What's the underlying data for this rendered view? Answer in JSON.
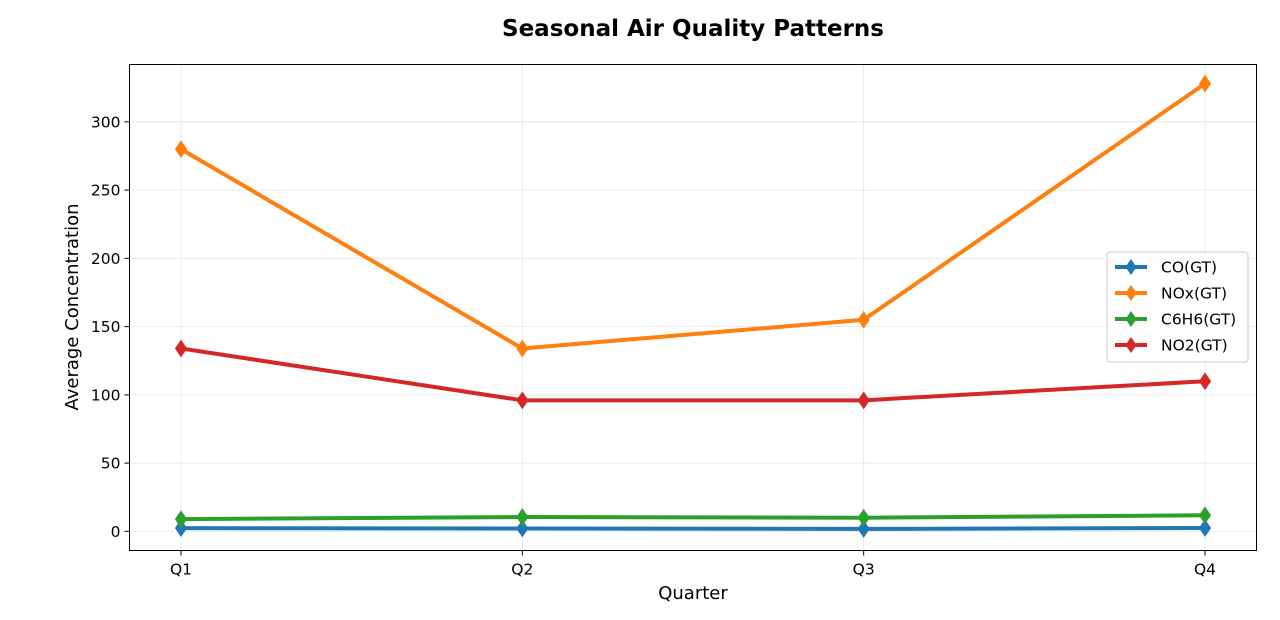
{
  "chart_data": {
    "type": "line",
    "title": "Seasonal Air Quality Patterns",
    "xlabel": "Quarter",
    "ylabel": "Average Concentration",
    "categories": [
      "Q1",
      "Q2",
      "Q3",
      "Q4"
    ],
    "ylim": [
      -14,
      342
    ],
    "yticks": [
      0,
      50,
      100,
      150,
      200,
      250,
      300
    ],
    "grid": true,
    "legend_position": "center-right",
    "marker": "diamond",
    "series": [
      {
        "name": "CO(GT)",
        "color": "#1f77b4",
        "values": [
          2.4,
          2.1,
          1.8,
          2.5
        ]
      },
      {
        "name": "NOx(GT)",
        "color": "#ff7f0e",
        "values": [
          280,
          134,
          155,
          328
        ]
      },
      {
        "name": "C6H6(GT)",
        "color": "#2ca02c",
        "values": [
          9.0,
          10.5,
          10.0,
          11.8
        ]
      },
      {
        "name": "NO2(GT)",
        "color": "#d62728",
        "values": [
          134,
          96,
          96,
          110
        ]
      }
    ]
  }
}
